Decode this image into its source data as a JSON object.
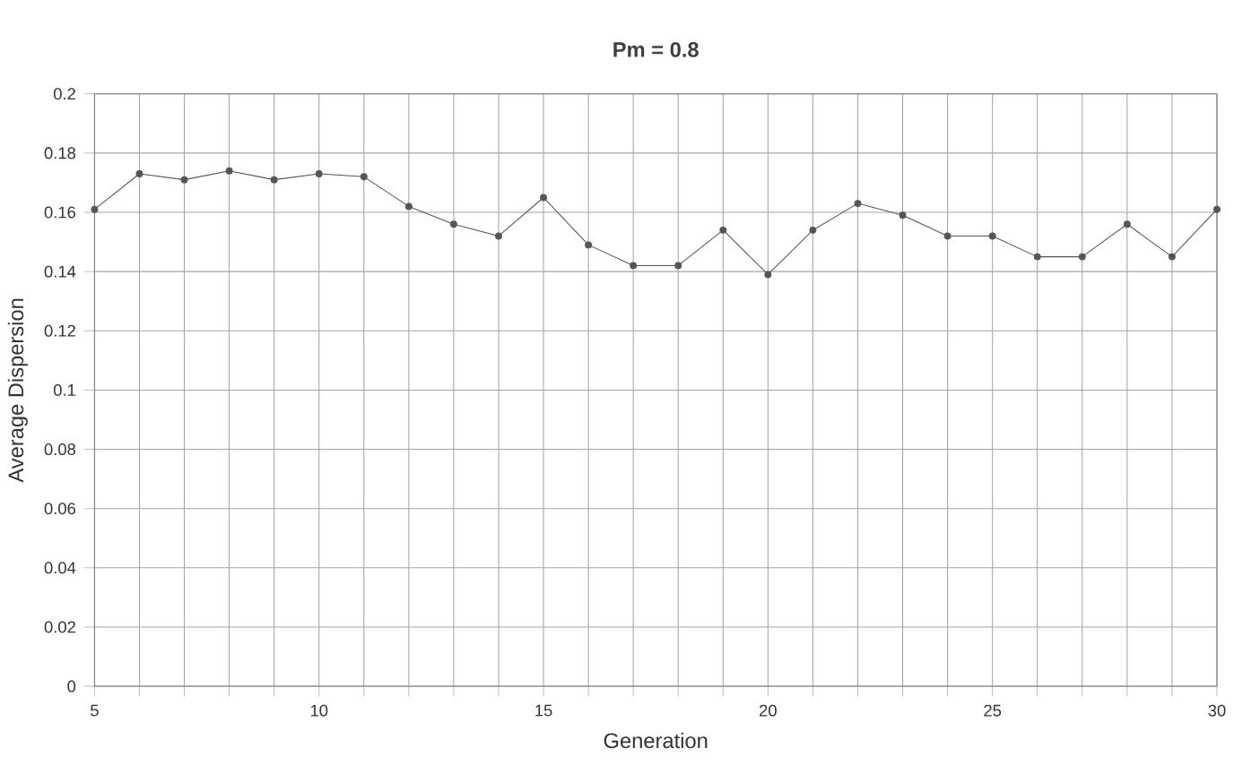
{
  "chart_data": {
    "type": "line",
    "title": "Pm = 0.8",
    "xlabel": "Generation",
    "ylabel": "Average Dispersion",
    "x": [
      5,
      6,
      7,
      8,
      9,
      10,
      11,
      12,
      13,
      14,
      15,
      16,
      17,
      18,
      19,
      20,
      21,
      22,
      23,
      24,
      25,
      26,
      27,
      28,
      29,
      30
    ],
    "series": [
      {
        "color": "#555555",
        "values": [
          0.161,
          0.173,
          0.171,
          0.174,
          0.171,
          0.173,
          0.172,
          0.162,
          0.156,
          0.152,
          0.165,
          0.149,
          0.142,
          0.142,
          0.154,
          0.139,
          0.154,
          0.163,
          0.159,
          0.152,
          0.152,
          0.145,
          0.145,
          0.156,
          0.145,
          0.161
        ]
      }
    ],
    "xlim": [
      5,
      30
    ],
    "xticks": [
      5,
      {
        "value": 6,
        "label": null
      },
      {
        "value": 7,
        "label": null
      },
      {
        "value": 8,
        "label": null
      },
      {
        "value": 9,
        "label": null
      },
      10,
      {
        "value": 11,
        "label": null
      },
      {
        "value": 12,
        "label": null
      },
      {
        "value": 13,
        "label": null
      },
      {
        "value": 14,
        "label": null
      },
      15,
      {
        "value": 16,
        "label": null
      },
      {
        "value": 17,
        "label": null
      },
      {
        "value": 18,
        "label": null
      },
      {
        "value": 19,
        "label": null
      },
      20,
      {
        "value": 21,
        "label": null
      },
      {
        "value": 22,
        "label": null
      },
      {
        "value": 23,
        "label": null
      },
      {
        "value": 24,
        "label": null
      },
      25,
      {
        "value": 26,
        "label": null
      },
      {
        "value": 27,
        "label": null
      },
      {
        "value": 28,
        "label": null
      },
      {
        "value": 29,
        "label": null
      },
      30
    ],
    "ylim": [
      0,
      0.2
    ],
    "yticks": [
      0,
      0.02,
      0.04,
      0.06,
      0.08,
      0.1,
      0.12,
      0.14,
      0.16,
      0.18,
      0.2
    ],
    "grid": true,
    "marker": "circle",
    "line_style": "solid"
  }
}
